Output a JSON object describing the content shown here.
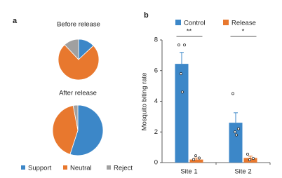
{
  "chart_data": [
    {
      "type": "pie",
      "panel_label": "a",
      "title": "Before release",
      "categories": [
        "Support",
        "Neutral",
        "Reject"
      ],
      "values": [
        13,
        75,
        12
      ],
      "colors": [
        "#3c87c8",
        "#e8782e",
        "#a0a0a0"
      ]
    },
    {
      "type": "pie",
      "title": "After release",
      "categories": [
        "Support",
        "Neutral",
        "Reject"
      ],
      "values": [
        55,
        42,
        3
      ],
      "colors": [
        "#3c87c8",
        "#e8782e",
        "#a0a0a0"
      ]
    },
    {
      "type": "bar",
      "panel_label": "b",
      "y_label": "Mosquito biting rate",
      "categories": [
        "Site 1",
        "Site 2"
      ],
      "series": [
        {
          "name": "Control",
          "color": "#3c87c8",
          "values": [
            6.44,
            2.6
          ],
          "errors": [
            0.75,
            0.65
          ],
          "points": [
            [
              7.67,
              7.67,
              5.8,
              4.6
            ],
            [
              4.5,
              2.2,
              2.0,
              1.8
            ]
          ]
        },
        {
          "name": "Release",
          "color": "#e8782e",
          "values": [
            0.2,
            0.3
          ],
          "errors": [
            0.1,
            0.12
          ],
          "points": [
            [
              0.2,
              0.3,
              0.45
            ],
            [
              0.55,
              0.27,
              0.18
            ]
          ]
        }
      ],
      "significance": [
        "**",
        "*"
      ],
      "ylim": [
        0,
        8
      ],
      "yticks": [
        0,
        2,
        4,
        6,
        8
      ]
    }
  ]
}
